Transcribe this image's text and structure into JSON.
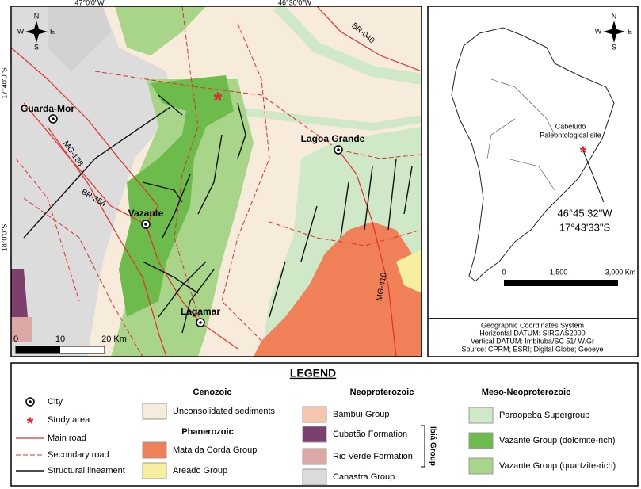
{
  "map": {
    "coordinates": [
      "47°0'0\"W",
      "46°30'0\"W",
      "17°40'0\"S",
      "18°0'0\"S"
    ],
    "cities": [
      "Guarda-Mor",
      "Lagoa Grande",
      "Vazante",
      "Lagamar"
    ],
    "roads": [
      "MG-188",
      "BR-354",
      "BR-040",
      "MG-410"
    ],
    "compass": [
      "N",
      "S",
      "E",
      "W"
    ],
    "scale": [
      "0",
      "10",
      "20 Km"
    ]
  },
  "inset": {
    "site": [
      "Cabeludo",
      "Paleontological site"
    ],
    "site_coordinates": [
      "46°45 32\"W",
      "17°43'33\"S"
    ],
    "compass": [
      "N",
      "S",
      "E",
      "W"
    ],
    "scale": [
      "0",
      "1,500",
      "3,000 Km"
    ]
  },
  "caption": [
    "Geographic Coordinates System",
    "Horizontal DATUM: SIRGAS2000",
    "Vertical DATUM: Imbituba/SC 51/ W.Gr",
    "Source: CPRM; ESRI; Digital Globe; Geoeye"
  ],
  "legend": {
    "title": "LEGEND",
    "symbols": [
      "City",
      "Study area",
      "Main road",
      "Secondary road",
      "Structural lineament"
    ],
    "cenozoic": {
      "heading": "Cenozoic",
      "items": [
        "Unconsolidated sediments"
      ]
    },
    "phanerozoic": {
      "heading": "Phanerozoic",
      "items": [
        "Mata da Corda Group",
        "Areado Group"
      ]
    },
    "neoproterozoic": {
      "heading": "Neoproterozoic",
      "items": [
        "Bambuí Group",
        "Cubatão Formation",
        "Rio Verde Formation",
        "Canastra Group"
      ],
      "subgroup": "Ibiá Group"
    },
    "meso_neoproterozoic": {
      "heading": "Meso-Neoproterozoic",
      "items": [
        "Paraopeba Supergroup",
        "Vazante Group (dolomite-rich)",
        "Vazante Group (quartzite-rich)"
      ]
    }
  }
}
